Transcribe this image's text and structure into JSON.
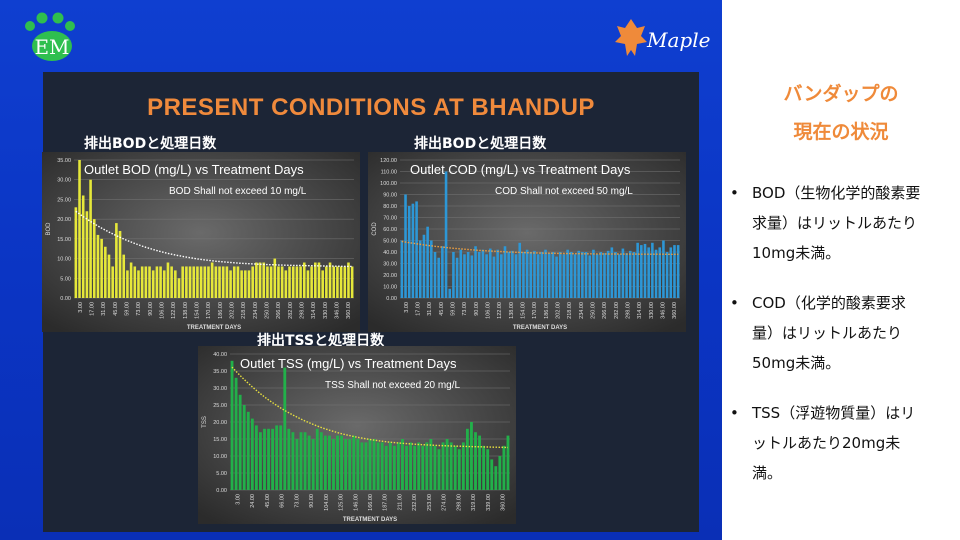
{
  "slide": {
    "heading": "PRESENT CONDITIONS AT BHANDUP",
    "maple_logo_text": "Maple",
    "em_logo_text": "EM",
    "captions": [
      "排出BODと処理日数",
      "排出BODと処理日数",
      "排出TSSと処理日数"
    ]
  },
  "sidebar": {
    "title_line1": "バンダップの",
    "title_line2": "現在の状況",
    "bullets": [
      {
        "line1": "BOD（生物化学的酸素要",
        "line2": "求量）はリットルあたり",
        "line3": "10mg未満。"
      },
      {
        "line1": "COD（化学的酸素要求",
        "line2": "量）はリットルあたり",
        "line3": "50mg未満。"
      },
      {
        "line1": "TSS（浮遊物質量）はリ",
        "line2": "ットルあたり20mg未",
        "line3": "満。"
      }
    ]
  },
  "colors": {
    "accent": "#f08a3c",
    "panel": "#0d3ac8",
    "bod": "#e6e83a",
    "cod": "#2d97d6",
    "tss": "#22b04a"
  },
  "chart_data": [
    {
      "type": "bar",
      "title": "Outlet BOD (mg/L) vs Treatment Days",
      "annotation": "BOD Shall not exceed 10 mg/L",
      "xlabel": "TREATMENT DAYS",
      "ylabel": "BOD",
      "ylim": [
        0,
        35
      ],
      "yticks": [
        "0.00",
        "5.00",
        "10.00",
        "15.00",
        "20.00",
        "25.00",
        "30.00",
        "35.00"
      ],
      "xticks": [
        "3.00",
        "17.00",
        "31.00",
        "45.00",
        "59.00",
        "73.00",
        "90.00",
        "106.00",
        "122.00",
        "138.00",
        "154.00",
        "170.00",
        "186.00",
        "202.00",
        "218.00",
        "234.00",
        "250.00",
        "266.00",
        "282.00",
        "298.00",
        "314.00",
        "330.00",
        "346.00",
        "360.00"
      ],
      "trend": "dotted-white",
      "values": [
        23,
        35,
        26,
        22,
        30,
        20,
        16,
        15,
        13,
        11,
        8,
        19,
        17,
        11,
        7,
        9,
        8,
        7,
        8,
        8,
        8,
        7,
        8,
        8,
        7,
        9,
        8,
        7,
        5,
        8,
        8,
        8,
        8,
        8,
        8,
        8,
        8,
        9,
        8,
        8,
        8,
        8,
        7,
        8,
        8,
        7,
        7,
        7,
        8,
        9,
        9,
        9,
        8,
        8,
        10,
        8,
        8,
        7,
        8,
        8,
        8,
        8,
        9,
        7,
        8,
        9,
        9,
        7,
        8,
        9,
        8,
        8,
        8,
        8,
        9,
        8
      ]
    },
    {
      "type": "bar",
      "title": "Outlet COD (mg/L) vs Treatment Days",
      "annotation": "COD Shall not exceed 50 mg/L",
      "xlabel": "TREATMENT DAYS",
      "ylabel": "COD",
      "ylim": [
        0,
        120
      ],
      "yticks": [
        "0.00",
        "10.00",
        "20.00",
        "30.00",
        "40.00",
        "50.00",
        "60.00",
        "70.00",
        "80.00",
        "90.00",
        "100.00",
        "110.00",
        "120.00"
      ],
      "xticks": [
        "3.00",
        "17.00",
        "31.00",
        "45.00",
        "59.00",
        "73.00",
        "90.00",
        "106.00",
        "122.00",
        "138.00",
        "154.00",
        "170.00",
        "186.00",
        "202.00",
        "218.00",
        "234.00",
        "250.00",
        "266.00",
        "282.00",
        "298.00",
        "314.00",
        "330.00",
        "346.00",
        "360.00"
      ],
      "trend": "dotted-orange",
      "values": [
        50,
        90,
        80,
        82,
        84,
        50,
        55,
        62,
        50,
        40,
        35,
        45,
        110,
        8,
        40,
        35,
        42,
        38,
        40,
        37,
        45,
        40,
        42,
        38,
        43,
        36,
        42,
        38,
        45,
        40,
        41,
        38,
        48,
        40,
        42,
        40,
        41,
        38,
        40,
        42,
        39,
        40,
        36,
        40,
        38,
        42,
        40,
        38,
        41,
        40,
        40,
        37,
        42,
        38,
        40,
        39,
        41,
        44,
        40,
        38,
        43,
        39,
        41,
        40,
        48,
        46,
        47,
        44,
        48,
        42,
        44,
        50,
        40,
        44,
        46,
        46
      ]
    },
    {
      "type": "bar",
      "title": "Outlet TSS (mg/L) vs Treatment Days",
      "annotation": "TSS Shall not exceed 20 mg/L",
      "xlabel": "TREATMENT DAYS",
      "ylabel": "TSS",
      "ylim": [
        0,
        40
      ],
      "yticks": [
        "0.00",
        "5.00",
        "10.00",
        "15.00",
        "20.00",
        "25.00",
        "30.00",
        "35.00",
        "40.00"
      ],
      "xticks": [
        "3.00",
        "24.00",
        "45.00",
        "66.00",
        "73.00",
        "90.00",
        "104.00",
        "125.00",
        "146.00",
        "166.00",
        "187.00",
        "211.00",
        "232.00",
        "253.00",
        "274.00",
        "298.00",
        "319.00",
        "339.00",
        "360.00"
      ],
      "trend": "dotted-yellow",
      "values": [
        38,
        33,
        28,
        25,
        23,
        21,
        19,
        17,
        18,
        18,
        18,
        19,
        19,
        36,
        18,
        17,
        15,
        17,
        17,
        16,
        15,
        18,
        17,
        16,
        16,
        15,
        16,
        16,
        15,
        15,
        16,
        15,
        14,
        14,
        15,
        15,
        14,
        14,
        13,
        14,
        13,
        14,
        15,
        13,
        14,
        13,
        14,
        13,
        14,
        15,
        13,
        12,
        14,
        15,
        14,
        13,
        12,
        14,
        18,
        20,
        17,
        16,
        13,
        12,
        9,
        7,
        10,
        13,
        16
      ]
    }
  ]
}
